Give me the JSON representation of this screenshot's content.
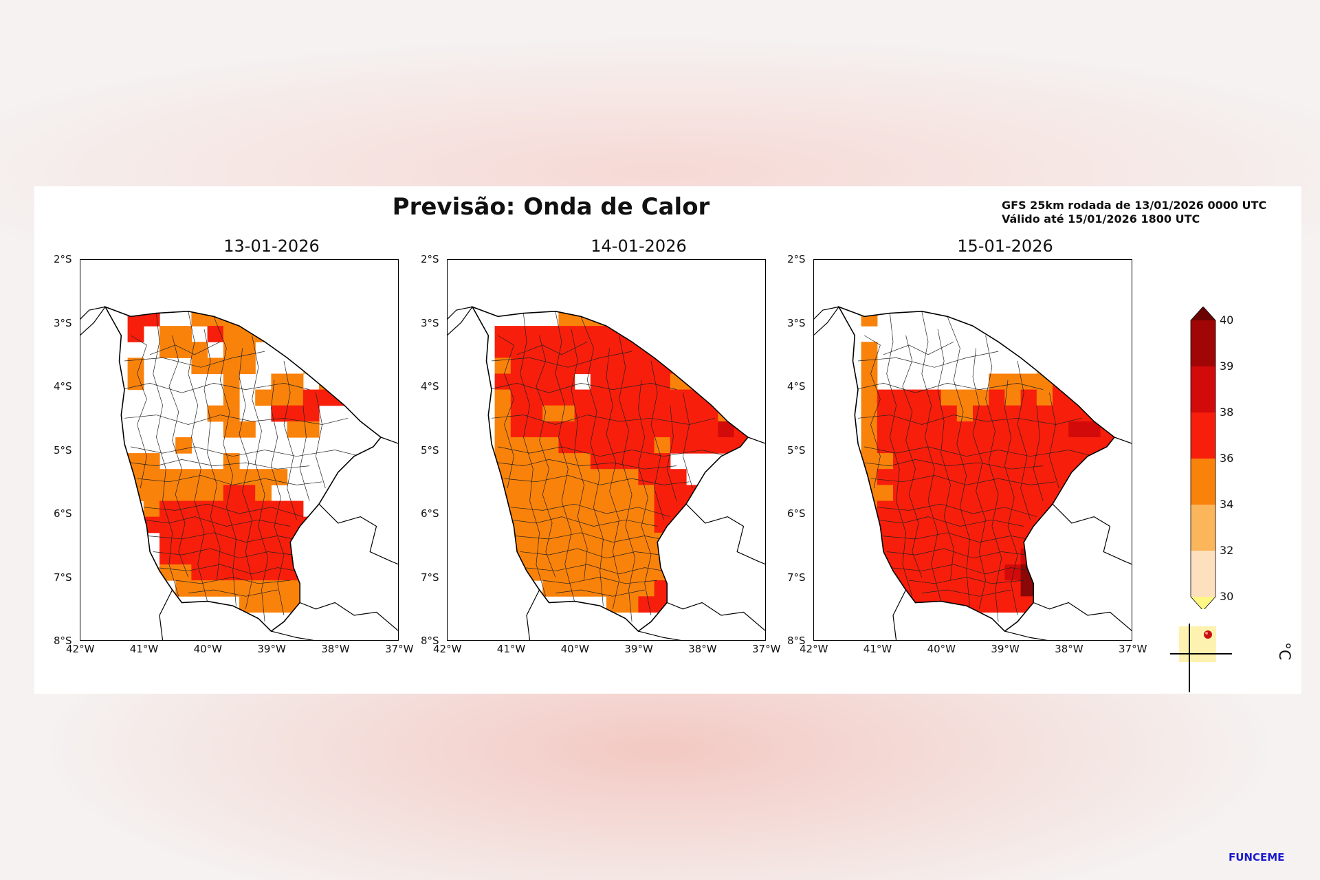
{
  "title": "Previsão: Onda de Calor",
  "run_info": {
    "line1": "GFS 25km rodada de 13/01/2026 0000 UTC",
    "line2": "Válido até 15/01/2026 1800 UTC"
  },
  "panels": [
    {
      "date": "13-01-2026"
    },
    {
      "date": "14-01-2026"
    },
    {
      "date": "15-01-2026"
    }
  ],
  "axes": {
    "lat_labels": [
      "2°S",
      "3°S",
      "4°S",
      "5°S",
      "6°S",
      "7°S",
      "8°S"
    ],
    "lon_labels": [
      "42°W",
      "41°W",
      "40°W",
      "39°W",
      "38°W",
      "37°W"
    ],
    "lat_range": [
      -8,
      -2
    ],
    "lon_range": [
      -42,
      -37
    ]
  },
  "colorbar": {
    "unit": "°C",
    "levels": [
      30,
      32,
      34,
      36,
      38,
      39,
      40
    ],
    "labels": [
      "30",
      "32",
      "34",
      "36",
      "38",
      "39",
      "40"
    ],
    "colors": [
      "#fde1bf",
      "#fbb65c",
      "#f9820b",
      "#f71e0b",
      "#d30a0a",
      "#a00606"
    ],
    "under_color": "#fef685",
    "over_color": "#6b0303"
  },
  "logo": {
    "text": "FUNCEME"
  },
  "map_colors": {
    "border": "#000000",
    "municipal": "#222222",
    "state": "#555555"
  },
  "chart_data": {
    "type": "heatmap",
    "title": "Previsão: Onda de Calor",
    "region": "Ceará",
    "categories": [
      "13-01-2026",
      "14-01-2026",
      "15-01-2026"
    ],
    "value_unit": "°C",
    "classes": [
      "<30",
      "30-32",
      "32-34",
      "34-36",
      "36-38",
      "38-39",
      "39-40",
      ">40"
    ],
    "xlim": [
      -42,
      -37
    ],
    "ylim": [
      -8,
      -2
    ]
  }
}
